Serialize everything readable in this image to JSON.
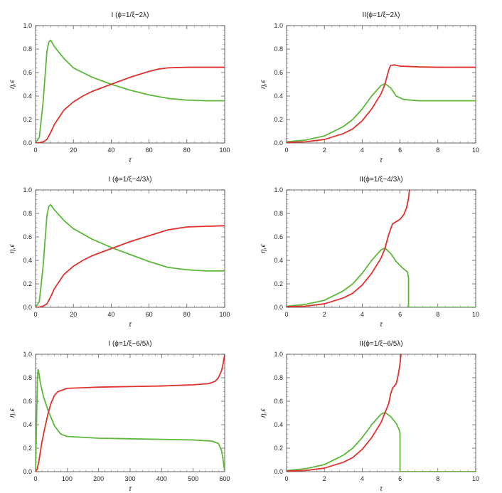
{
  "chart_data": [
    {
      "type": "line",
      "title": "I (ϕ=1/ξ−2λ)",
      "xlabel": "τ",
      "ylabel": "η,ϵ",
      "xlim": [
        0,
        100
      ],
      "ylim": [
        0,
        1
      ],
      "xticks": [
        0,
        20,
        40,
        60,
        80,
        100
      ],
      "xtick_labels": [
        "0",
        "20",
        "40",
        "60",
        "80",
        "100"
      ],
      "yticks": [
        0,
        0.2,
        0.4,
        0.6,
        0.8,
        1.0
      ],
      "ytick_labels": [
        "0.0",
        "0.2",
        "0.4",
        "0.6",
        "0.8",
        "1.0"
      ],
      "series": [
        {
          "name": "green",
          "color": "#5db83a",
          "x": [
            0,
            2,
            4,
            6,
            7,
            8,
            10,
            15,
            20,
            30,
            40,
            50,
            60,
            70,
            80,
            90,
            100
          ],
          "y": [
            0,
            0.05,
            0.35,
            0.78,
            0.86,
            0.875,
            0.82,
            0.72,
            0.64,
            0.56,
            0.5,
            0.45,
            0.41,
            0.38,
            0.365,
            0.36,
            0.36
          ]
        },
        {
          "name": "red",
          "color": "#e0312d",
          "x": [
            0,
            2,
            4,
            6,
            8,
            10,
            15,
            20,
            25,
            30,
            40,
            50,
            60,
            65,
            70,
            80,
            90,
            100
          ],
          "y": [
            0,
            0.002,
            0.01,
            0.03,
            0.09,
            0.16,
            0.28,
            0.35,
            0.4,
            0.44,
            0.5,
            0.56,
            0.61,
            0.63,
            0.64,
            0.645,
            0.645,
            0.645
          ]
        }
      ]
    },
    {
      "type": "line",
      "title": "II(ϕ=1/ξ−2λ)",
      "xlabel": "τ",
      "ylabel": "η,ϵ",
      "xlim": [
        0,
        10
      ],
      "ylim": [
        0,
        1
      ],
      "xticks": [
        0,
        2,
        4,
        6,
        8,
        10
      ],
      "xtick_labels": [
        "0",
        "2",
        "4",
        "6",
        "8",
        "10"
      ],
      "yticks": [
        0,
        0.2,
        0.4,
        0.6,
        0.8,
        1.0
      ],
      "ytick_labels": [
        "0.0",
        "0.2",
        "0.4",
        "0.6",
        "0.8",
        "1.0"
      ],
      "series": [
        {
          "name": "green",
          "color": "#5db83a",
          "x": [
            0,
            1,
            2,
            3,
            3.5,
            4,
            4.5,
            5,
            5.2,
            5.5,
            5.8,
            6.2,
            7,
            8,
            10
          ],
          "y": [
            0.01,
            0.025,
            0.06,
            0.14,
            0.2,
            0.29,
            0.4,
            0.49,
            0.505,
            0.47,
            0.4,
            0.37,
            0.36,
            0.36,
            0.36
          ]
        },
        {
          "name": "red",
          "color": "#e0312d",
          "x": [
            0,
            1,
            2,
            3,
            3.5,
            4,
            4.5,
            5,
            5.2,
            5.4,
            5.5,
            5.7,
            6,
            7,
            8,
            10
          ],
          "y": [
            0.005,
            0.01,
            0.03,
            0.08,
            0.12,
            0.19,
            0.29,
            0.42,
            0.5,
            0.62,
            0.66,
            0.665,
            0.655,
            0.648,
            0.645,
            0.645
          ]
        }
      ]
    },
    {
      "type": "line",
      "title": "I (ϕ=1/ξ−4/3λ)",
      "xlabel": "τ",
      "ylabel": "η,ϵ",
      "xlim": [
        0,
        100
      ],
      "ylim": [
        0,
        1
      ],
      "xticks": [
        0,
        20,
        40,
        60,
        80,
        100
      ],
      "xtick_labels": [
        "0",
        "20",
        "40",
        "60",
        "80",
        "100"
      ],
      "yticks": [
        0,
        0.2,
        0.4,
        0.6,
        0.8,
        1.0
      ],
      "ytick_labels": [
        "0.0",
        "0.2",
        "0.4",
        "0.6",
        "0.8",
        "1.0"
      ],
      "series": [
        {
          "name": "green",
          "color": "#5db83a",
          "x": [
            0,
            2,
            4,
            6,
            7,
            8,
            10,
            15,
            20,
            30,
            40,
            50,
            60,
            70,
            80,
            90,
            100
          ],
          "y": [
            0,
            0.05,
            0.35,
            0.78,
            0.86,
            0.875,
            0.83,
            0.74,
            0.67,
            0.58,
            0.51,
            0.45,
            0.39,
            0.34,
            0.32,
            0.31,
            0.31
          ]
        },
        {
          "name": "red",
          "color": "#e0312d",
          "x": [
            0,
            2,
            4,
            6,
            8,
            10,
            15,
            20,
            25,
            30,
            40,
            50,
            60,
            70,
            80,
            90,
            100
          ],
          "y": [
            0,
            0.002,
            0.01,
            0.03,
            0.09,
            0.16,
            0.28,
            0.35,
            0.4,
            0.44,
            0.5,
            0.56,
            0.61,
            0.66,
            0.685,
            0.69,
            0.695
          ]
        }
      ]
    },
    {
      "type": "line",
      "title": "II(ϕ=1/ξ−4/3λ)",
      "xlabel": "τ",
      "ylabel": "η,ϵ",
      "xlim": [
        0,
        10
      ],
      "ylim": [
        0,
        1
      ],
      "xticks": [
        0,
        2,
        4,
        6,
        8,
        10
      ],
      "xtick_labels": [
        "0",
        "2",
        "4",
        "6",
        "8",
        "10"
      ],
      "yticks": [
        0,
        0.2,
        0.4,
        0.6,
        0.8,
        1.0
      ],
      "ytick_labels": [
        "0.0",
        "0.2",
        "0.4",
        "0.6",
        "0.8",
        "1.0"
      ],
      "series": [
        {
          "name": "green",
          "color": "#5db83a",
          "x": [
            0,
            1,
            2,
            3,
            3.5,
            4,
            4.5,
            5,
            5.2,
            5.5,
            5.8,
            6.1,
            6.4,
            6.45,
            6.45,
            7,
            8,
            10
          ],
          "y": [
            0.01,
            0.025,
            0.06,
            0.14,
            0.2,
            0.29,
            0.4,
            0.49,
            0.505,
            0.46,
            0.39,
            0.34,
            0.3,
            0.25,
            0,
            0,
            0,
            0
          ]
        },
        {
          "name": "red",
          "color": "#e0312d",
          "x": [
            0,
            1,
            2,
            3,
            3.5,
            4,
            4.5,
            5,
            5.2,
            5.4,
            5.6,
            5.8,
            6.0,
            6.2,
            6.35,
            6.45,
            6.5
          ],
          "y": [
            0.005,
            0.01,
            0.03,
            0.08,
            0.12,
            0.19,
            0.29,
            0.42,
            0.5,
            0.62,
            0.71,
            0.73,
            0.75,
            0.79,
            0.85,
            0.93,
            1.0
          ]
        }
      ]
    },
    {
      "type": "line",
      "title": "I (ϕ=1/ξ−6/5λ)",
      "xlabel": "τ",
      "ylabel": "η,ϵ",
      "xlim": [
        0,
        600
      ],
      "ylim": [
        0,
        1
      ],
      "xticks": [
        0,
        100,
        200,
        300,
        400,
        500,
        600
      ],
      "xtick_labels": [
        "0",
        "100",
        "200",
        "300",
        "400",
        "500",
        "600"
      ],
      "yticks": [
        0,
        0.2,
        0.4,
        0.6,
        0.8,
        1.0
      ],
      "ytick_labels": [
        "0.0",
        "0.2",
        "0.4",
        "0.6",
        "0.8",
        "1.0"
      ],
      "series": [
        {
          "name": "green",
          "color": "#5db83a",
          "x": [
            0,
            3,
            6,
            8,
            10,
            15,
            25,
            40,
            60,
            80,
            100,
            200,
            300,
            400,
            500,
            560,
            580,
            590,
            595,
            600
          ],
          "y": [
            0,
            0.4,
            0.8,
            0.87,
            0.85,
            0.76,
            0.64,
            0.52,
            0.39,
            0.32,
            0.3,
            0.285,
            0.28,
            0.275,
            0.27,
            0.26,
            0.24,
            0.18,
            0.1,
            0
          ]
        },
        {
          "name": "red",
          "color": "#e0312d",
          "x": [
            0,
            5,
            10,
            20,
            30,
            40,
            50,
            60,
            70,
            80,
            100,
            200,
            300,
            400,
            500,
            550,
            570,
            580,
            590,
            595,
            600
          ],
          "y": [
            0,
            0.02,
            0.08,
            0.25,
            0.38,
            0.5,
            0.59,
            0.65,
            0.68,
            0.69,
            0.71,
            0.72,
            0.725,
            0.73,
            0.74,
            0.75,
            0.77,
            0.8,
            0.86,
            0.92,
            1.0
          ]
        }
      ]
    },
    {
      "type": "line",
      "title": "II(ϕ=1/ξ−6/5λ)",
      "xlabel": "τ",
      "ylabel": "η,ϵ",
      "xlim": [
        0,
        10
      ],
      "ylim": [
        0,
        1
      ],
      "xticks": [
        0,
        2,
        4,
        6,
        8,
        10
      ],
      "xtick_labels": [
        "0",
        "2",
        "4",
        "6",
        "8",
        "10"
      ],
      "yticks": [
        0,
        0.2,
        0.4,
        0.6,
        0.8,
        1.0
      ],
      "ytick_labels": [
        "0.0",
        "0.2",
        "0.4",
        "0.6",
        "0.8",
        "1.0"
      ],
      "series": [
        {
          "name": "green",
          "color": "#5db83a",
          "x": [
            0,
            1,
            2,
            3,
            3.5,
            4,
            4.5,
            5,
            5.2,
            5.5,
            5.8,
            5.95,
            6.0,
            6.0,
            7,
            8,
            10
          ],
          "y": [
            0.01,
            0.025,
            0.06,
            0.14,
            0.2,
            0.29,
            0.4,
            0.49,
            0.505,
            0.47,
            0.41,
            0.36,
            0.33,
            0,
            0,
            0,
            0
          ]
        },
        {
          "name": "red",
          "color": "#e0312d",
          "x": [
            0,
            1,
            2,
            3,
            3.5,
            4,
            4.5,
            5,
            5.2,
            5.4,
            5.5,
            5.6,
            5.8,
            5.9,
            6.0,
            6.05
          ],
          "y": [
            0.005,
            0.01,
            0.03,
            0.08,
            0.12,
            0.19,
            0.29,
            0.42,
            0.5,
            0.58,
            0.66,
            0.71,
            0.75,
            0.82,
            0.92,
            1.0
          ]
        }
      ]
    }
  ]
}
